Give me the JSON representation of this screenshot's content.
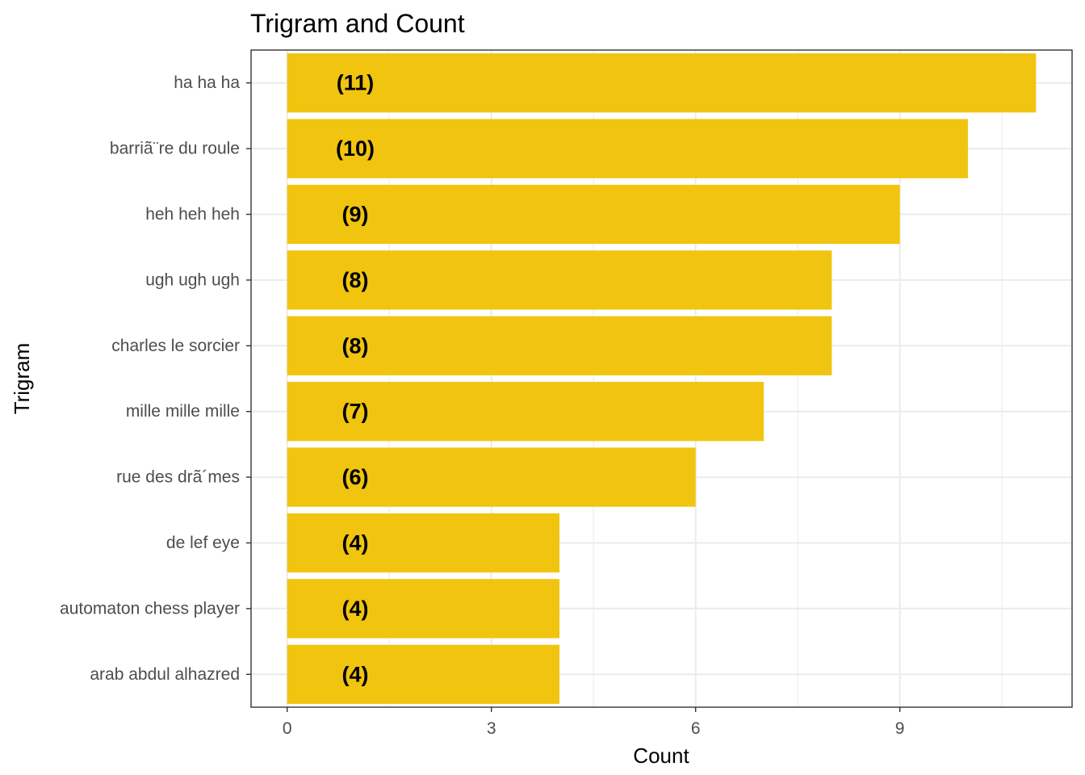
{
  "chart_data": {
    "type": "bar",
    "orientation": "horizontal",
    "title": "Trigram and Count",
    "xlabel": "Count",
    "ylabel": "Trigram",
    "categories": [
      "ha ha ha",
      "barriã¨re du roule",
      "heh heh heh",
      "ugh ugh ugh",
      "charles le sorcier",
      "mille mille mille",
      "rue des drã´mes",
      "de lef eye",
      "automaton chess player",
      "arab abdul alhazred"
    ],
    "values": [
      11,
      10,
      9,
      8,
      8,
      7,
      6,
      4,
      4,
      4
    ],
    "data_labels": [
      "(11)",
      "(10)",
      "(9)",
      "(8)",
      "(8)",
      "(7)",
      "(6)",
      "(4)",
      "(4)",
      "(4)"
    ],
    "xlim": [
      -0.53,
      11.53
    ],
    "x_ticks": [
      0,
      3,
      6,
      9
    ],
    "x_tick_labels": [
      "0",
      "3",
      "6",
      "9"
    ],
    "label_x_value": 1.0,
    "grid": true,
    "legend": "none",
    "colors": {
      "bar": "#F1C40F",
      "grid": "#EBEBEB",
      "panel_border": "#333333",
      "tick_label": "#4D4D4D",
      "text": "#000000"
    }
  }
}
